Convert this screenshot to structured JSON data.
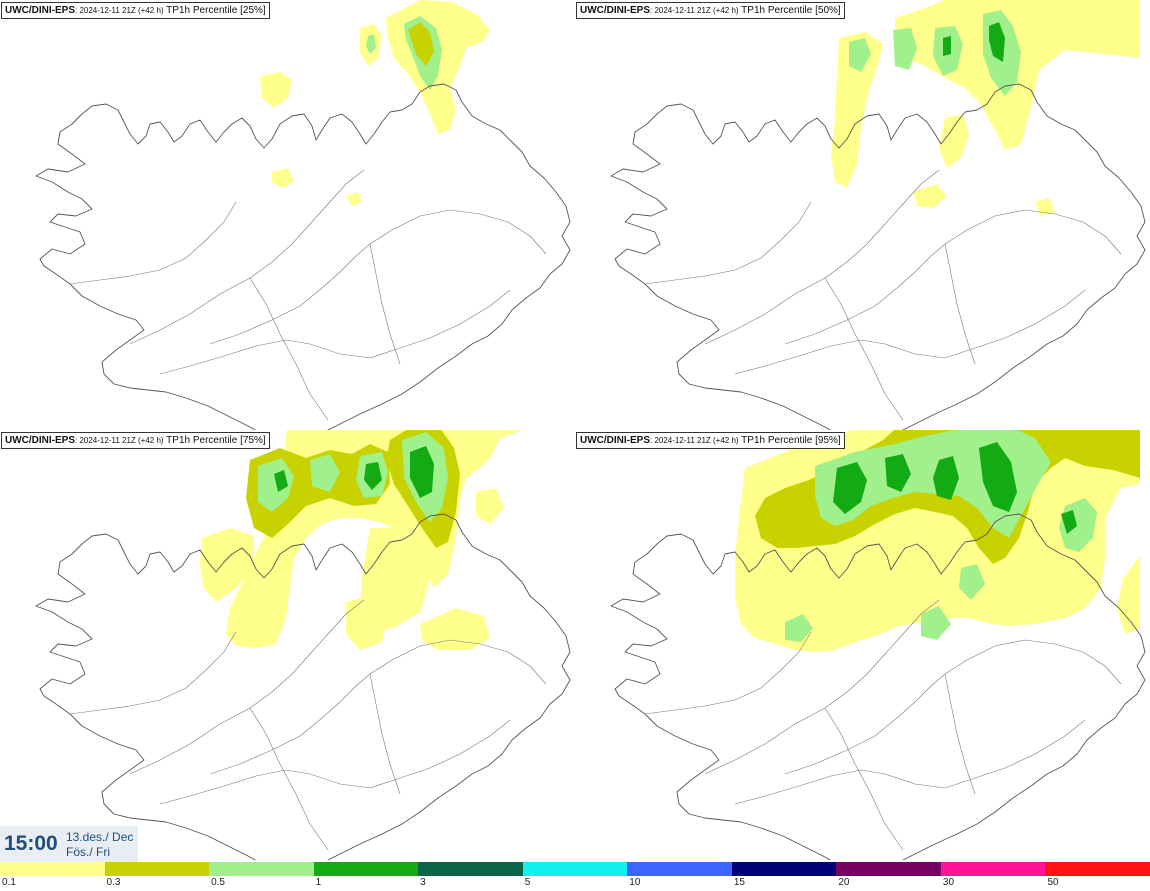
{
  "panels": [
    {
      "model": "UWC/DINI-EPS",
      "run": ": 2024-12-11 21Z (+42 h)",
      "field": " TP1h Percentile [25%]"
    },
    {
      "model": "UWC/DINI-EPS",
      "run": ": 2024-12-11 21Z (+42 h)",
      "field": " TP1h Percentile [50%]"
    },
    {
      "model": "UWC/DINI-EPS",
      "run": ": 2024-12-11 21Z (+42 h)",
      "field": " TP1h Percentile [75%]"
    },
    {
      "model": "UWC/DINI-EPS",
      "run": ": 2024-12-11 21Z (+42 h)",
      "field": " TP1h Percentile [95%]"
    }
  ],
  "valid_time": {
    "clock": "15:00",
    "date_line1": "13.des./ Dec",
    "date_line2": "Fös./ Fri"
  },
  "colorbar": {
    "colors": [
      "#ffff8c",
      "#c8d200",
      "#a0f08c",
      "#14aa14",
      "#0a6446",
      "#14f0f0",
      "#3c64ff",
      "#000078",
      "#780064",
      "#ff1496",
      "#ff1414"
    ],
    "labels": [
      "0.1",
      "0.3",
      "0.5",
      "1",
      "3",
      "5",
      "10",
      "15",
      "20",
      "30",
      "50"
    ]
  },
  "palette": {
    "level1": "#ffff8c",
    "level2": "#c8d200",
    "level3": "#a0f08c",
    "level4": "#14aa14",
    "coast": "#555555"
  }
}
